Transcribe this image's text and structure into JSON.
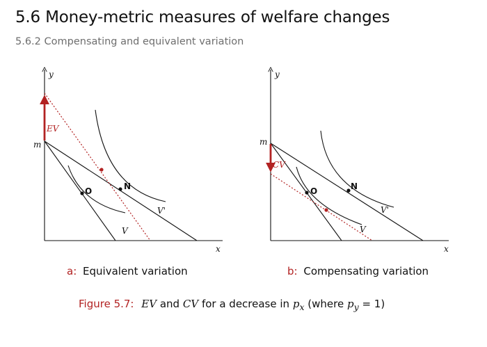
{
  "slide": {
    "title": "5.6 Money-metric measures of welfare changes",
    "subtitle": "5.6.2 Compensating and equivalent variation"
  },
  "panel_a": {
    "y_axis": "y",
    "x_axis": "x",
    "m_label": "m",
    "arrow_label": "EV",
    "point_old": "O",
    "point_new": "N",
    "curve_old": "V",
    "curve_new": "V'"
  },
  "panel_b": {
    "y_axis": "y",
    "x_axis": "x",
    "m_label": "m",
    "arrow_label": "CV",
    "point_old": "O",
    "point_new": "N",
    "curve_old": "V",
    "curve_new": "V'"
  },
  "captions": {
    "a_letter": "a:",
    "a_text": "Equivalent variation",
    "b_letter": "b:",
    "b_text": "Compensating variation"
  },
  "figure_caption": {
    "number": "Figure 5.7:",
    "ev": "EV",
    "and": "and",
    "cv": "CV",
    "text_mid": "for a decrease in",
    "px": "p",
    "px_sub": "x",
    "where": "(where",
    "py": "p",
    "py_sub": "y",
    "eq": "= 1)"
  },
  "colors": {
    "accent": "#b22222",
    "text": "#111111",
    "subtitle": "#6e6e6e"
  }
}
